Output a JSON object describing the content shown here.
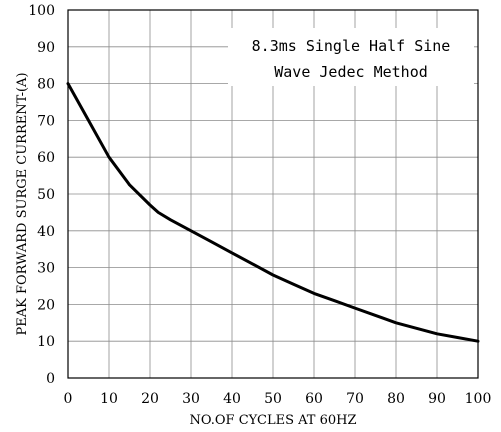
{
  "chart_data": {
    "type": "line",
    "title": "",
    "xlabel": "NO.OF CYCLES AT 60HZ",
    "ylabel": "PEAK FORWARD SURGE CURRENT-(A)",
    "xlim": [
      0,
      100
    ],
    "ylim": [
      0,
      100
    ],
    "x_ticks": [
      0,
      10,
      20,
      30,
      40,
      50,
      60,
      70,
      80,
      90,
      100
    ],
    "y_ticks": [
      0,
      10,
      20,
      30,
      40,
      50,
      60,
      70,
      80,
      90,
      100
    ],
    "grid": true,
    "annotation": [
      "8.3ms Single Half Sine",
      "Wave Jedec Method"
    ],
    "series": [
      {
        "x": [
          0,
          5,
          10,
          15,
          20,
          22,
          25,
          30,
          35,
          40,
          45,
          50,
          55,
          60,
          65,
          70,
          75,
          80,
          85,
          90,
          95,
          100
        ],
        "y": [
          80,
          70,
          60,
          52.5,
          47,
          45,
          43,
          40,
          37,
          34,
          31,
          28,
          25.5,
          23,
          21,
          19,
          17,
          15,
          13.5,
          12,
          11,
          10
        ],
        "color": "#000000"
      }
    ]
  }
}
